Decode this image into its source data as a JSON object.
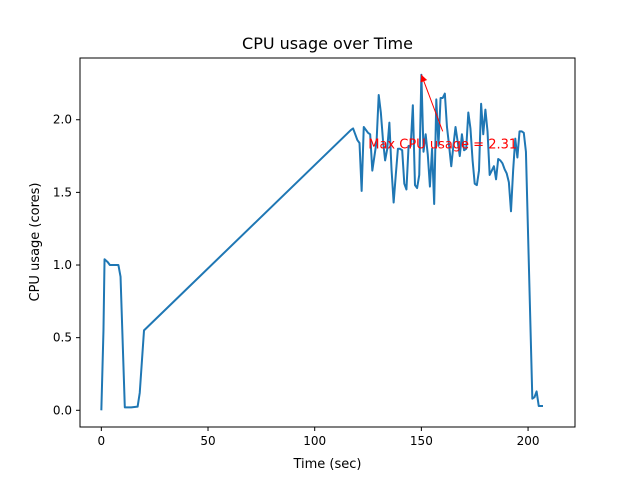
{
  "chart_data": {
    "type": "line",
    "title": "CPU usage over Time",
    "xlabel": "Time (sec)",
    "ylabel": "CPU usage (cores)",
    "xlim": [
      -10,
      222
    ],
    "ylim": [
      -0.115,
      2.425
    ],
    "xticks": [
      0,
      50,
      100,
      150,
      200
    ],
    "xtick_labels": [
      "0",
      "50",
      "100",
      "150",
      "200"
    ],
    "yticks": [
      0.0,
      0.5,
      1.0,
      1.5,
      2.0
    ],
    "ytick_labels": [
      "0.0",
      "0.5",
      "1.0",
      "1.5",
      "2.0"
    ],
    "grid": false,
    "series": [
      {
        "name": "",
        "color": "#1f77b4",
        "points": [
          [
            0,
            0.0
          ],
          [
            1,
            0.55
          ],
          [
            1.5,
            1.04
          ],
          [
            3,
            1.02
          ],
          [
            4,
            1.0
          ],
          [
            6,
            1.0
          ],
          [
            8,
            1.0
          ],
          [
            9,
            0.92
          ],
          [
            11,
            0.02
          ],
          [
            14,
            0.02
          ],
          [
            17,
            0.025
          ],
          [
            18,
            0.12
          ],
          [
            20,
            0.55
          ],
          [
            117,
            1.93
          ],
          [
            118,
            1.94
          ],
          [
            120,
            1.86
          ],
          [
            121,
            1.84
          ],
          [
            122,
            1.51
          ],
          [
            123,
            1.95
          ],
          [
            125,
            1.91
          ],
          [
            126,
            1.9
          ],
          [
            127,
            1.65
          ],
          [
            128,
            1.75
          ],
          [
            129,
            1.85
          ],
          [
            130,
            2.17
          ],
          [
            131,
            2.05
          ],
          [
            132,
            1.86
          ],
          [
            133,
            1.72
          ],
          [
            134,
            1.8
          ],
          [
            135,
            1.98
          ],
          [
            136,
            1.66
          ],
          [
            137,
            1.43
          ],
          [
            138,
            1.62
          ],
          [
            139,
            1.8
          ],
          [
            140,
            1.8
          ],
          [
            141,
            1.79
          ],
          [
            142,
            1.56
          ],
          [
            143,
            1.52
          ],
          [
            144,
            1.82
          ],
          [
            145,
            1.82
          ],
          [
            146,
            2.1
          ],
          [
            147,
            1.55
          ],
          [
            148,
            1.53
          ],
          [
            149,
            1.62
          ],
          [
            150,
            2.31
          ],
          [
            151,
            1.78
          ],
          [
            152,
            1.9
          ],
          [
            153,
            1.76
          ],
          [
            154,
            1.54
          ],
          [
            155,
            1.8
          ],
          [
            156,
            1.42
          ],
          [
            157,
            2.14
          ],
          [
            158,
            1.82
          ],
          [
            159,
            2.15
          ],
          [
            160,
            2.15
          ],
          [
            161,
            2.18
          ],
          [
            162,
            1.95
          ],
          [
            163,
            1.82
          ],
          [
            164,
            1.68
          ],
          [
            165,
            1.82
          ],
          [
            166,
            1.95
          ],
          [
            167,
            1.85
          ],
          [
            168,
            1.75
          ],
          [
            169,
            1.9
          ],
          [
            170,
            1.79
          ],
          [
            171,
            1.8
          ],
          [
            172,
            2.05
          ],
          [
            173,
            1.94
          ],
          [
            174,
            1.72
          ],
          [
            175,
            1.56
          ],
          [
            176,
            1.55
          ],
          [
            177,
            1.65
          ],
          [
            178,
            2.11
          ],
          [
            179,
            1.9
          ],
          [
            180,
            2.07
          ],
          [
            181,
            1.92
          ],
          [
            182,
            1.62
          ],
          [
            183,
            1.65
          ],
          [
            184,
            1.68
          ],
          [
            185,
            1.59
          ],
          [
            186,
            1.73
          ],
          [
            187,
            1.72
          ],
          [
            188,
            1.7
          ],
          [
            189,
            1.66
          ],
          [
            190,
            1.63
          ],
          [
            191,
            1.57
          ],
          [
            192,
            1.37
          ],
          [
            193,
            1.65
          ],
          [
            194,
            1.87
          ],
          [
            195,
            1.74
          ],
          [
            196,
            1.92
          ],
          [
            197,
            1.92
          ],
          [
            198,
            1.91
          ],
          [
            199,
            1.78
          ],
          [
            202,
            0.08
          ],
          [
            203,
            0.09
          ],
          [
            204,
            0.13
          ],
          [
            205,
            0.03
          ],
          [
            207,
            0.03
          ]
        ]
      }
    ],
    "annotation": {
      "text": "Max CPU usage = 2.31",
      "point": [
        150,
        2.31
      ],
      "text_at": [
        160,
        1.92
      ],
      "color": "#ff0000"
    }
  }
}
